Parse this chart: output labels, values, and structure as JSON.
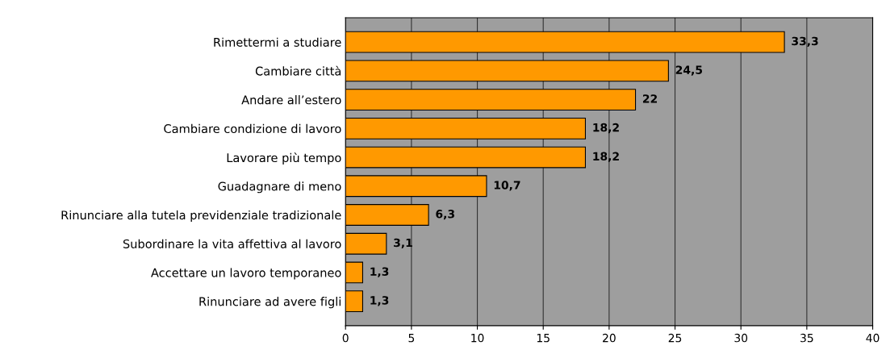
{
  "chart_data": {
    "type": "bar",
    "orientation": "horizontal",
    "categories": [
      "Rimettermi a studiare",
      "Cambiare città",
      "Andare all’estero",
      "Cambiare condizione di lavoro",
      "Lavorare più tempo",
      "Guadagnare di meno",
      "Rinunciare alla tutela previdenziale tradizionale",
      "Subordinare la vita affettiva al lavoro",
      "Accettare un lavoro temporaneo",
      "Rinunciare ad avere figli"
    ],
    "values": [
      33.3,
      24.5,
      22,
      18.2,
      18.2,
      10.7,
      6.3,
      3.1,
      1.3,
      1.3
    ],
    "value_labels": [
      "33,3",
      "24,5",
      "22",
      "18,2",
      "18,2",
      "10,7",
      "6,3",
      "3,1",
      "1,3",
      "1,3"
    ],
    "color": "#ff9900",
    "xlim": [
      0,
      40
    ],
    "xticks": [
      0,
      5,
      10,
      15,
      20,
      25,
      30,
      35,
      40
    ],
    "grid": "x"
  }
}
